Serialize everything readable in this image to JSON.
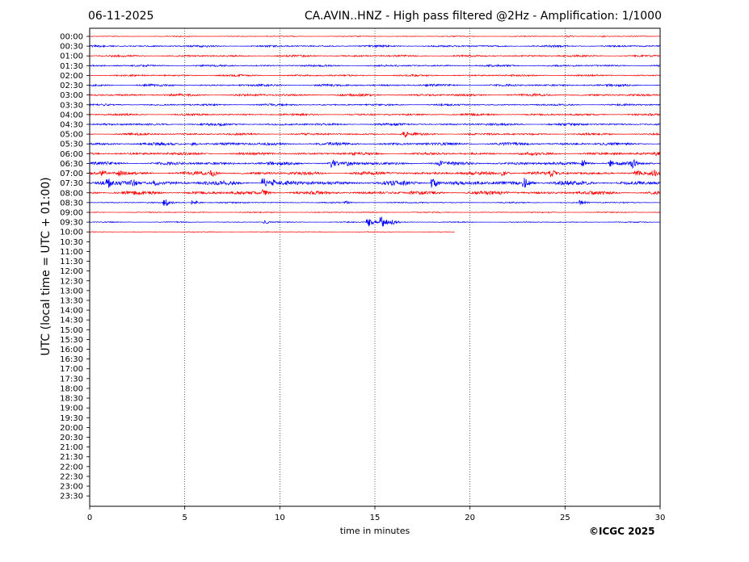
{
  "header": {
    "date": "06-11-2025",
    "title": "CA.AVIN..HNZ - High pass filtered @2Hz - Amplification: 1/1000"
  },
  "footer": {
    "credit": "©ICGC 2025"
  },
  "chart_data": {
    "type": "line",
    "title": "CA.AVIN..HNZ - High pass filtered @2Hz - Amplification: 1/1000",
    "xlabel": "time in minutes",
    "ylabel": "UTC (local time = UTC + 01:00)",
    "xlim": [
      0,
      30
    ],
    "xticks": [
      0,
      5,
      10,
      15,
      20,
      25,
      30
    ],
    "vertical_grid": [
      5,
      10,
      15,
      20,
      25
    ],
    "grid_style": "dotted vertical lines",
    "row_labels": [
      "00:00",
      "00:30",
      "01:00",
      "01:30",
      "02:00",
      "02:30",
      "03:00",
      "03:30",
      "04:00",
      "04:30",
      "05:00",
      "05:30",
      "06:00",
      "06:30",
      "07:00",
      "07:30",
      "08:00",
      "08:30",
      "09:00",
      "09:30",
      "10:00",
      "10:30",
      "11:00",
      "11:30",
      "12:00",
      "12:30",
      "13:00",
      "13:30",
      "14:00",
      "14:30",
      "15:00",
      "15:30",
      "16:00",
      "16:30",
      "17:00",
      "17:30",
      "18:00",
      "18:30",
      "19:00",
      "19:30",
      "20:00",
      "20:30",
      "21:00",
      "21:30",
      "22:00",
      "22:30",
      "23:00",
      "23:30"
    ],
    "series_colors": [
      "#ff0000",
      "#0000ff"
    ],
    "traces": [
      {
        "row": "00:00",
        "color": "red",
        "end_min": 30,
        "amplitude": 0.6,
        "events": [
          {
            "t": 25.2,
            "amp": 1.2
          },
          {
            "t": 27,
            "amp": 1.1
          }
        ]
      },
      {
        "row": "00:30",
        "color": "blue",
        "end_min": 30,
        "amplitude": 1.3,
        "events": []
      },
      {
        "row": "01:00",
        "color": "red",
        "end_min": 30,
        "amplitude": 1.3,
        "events": []
      },
      {
        "row": "01:30",
        "color": "blue",
        "end_min": 30,
        "amplitude": 1.3,
        "events": []
      },
      {
        "row": "02:00",
        "color": "red",
        "end_min": 30,
        "amplitude": 1.2,
        "events": []
      },
      {
        "row": "02:30",
        "color": "blue",
        "end_min": 30,
        "amplitude": 1.5,
        "events": []
      },
      {
        "row": "03:00",
        "color": "red",
        "end_min": 30,
        "amplitude": 1.6,
        "events": []
      },
      {
        "row": "03:30",
        "color": "blue",
        "end_min": 30,
        "amplitude": 1.3,
        "events": []
      },
      {
        "row": "04:00",
        "color": "red",
        "end_min": 30,
        "amplitude": 1.4,
        "events": []
      },
      {
        "row": "04:30",
        "color": "blue",
        "end_min": 30,
        "amplitude": 1.6,
        "events": []
      },
      {
        "row": "05:00",
        "color": "red",
        "end_min": 30,
        "amplitude": 1.5,
        "events": [
          {
            "t": 16.6,
            "amp": 4.5
          },
          {
            "t": 17.2,
            "amp": 2.5
          }
        ]
      },
      {
        "row": "05:30",
        "color": "blue",
        "end_min": 30,
        "amplitude": 2.0,
        "events": [
          {
            "t": 5.5,
            "amp": 2.5
          }
        ]
      },
      {
        "row": "06:00",
        "color": "red",
        "end_min": 30,
        "amplitude": 1.9,
        "events": [
          {
            "t": 29.8,
            "amp": 3
          }
        ]
      },
      {
        "row": "06:30",
        "color": "blue",
        "end_min": 30,
        "amplitude": 2.2,
        "events": [
          {
            "t": 12.8,
            "amp": 5
          },
          {
            "t": 13.6,
            "amp": 4
          },
          {
            "t": 18.5,
            "amp": 3
          },
          {
            "t": 26,
            "amp": 4
          },
          {
            "t": 27.4,
            "amp": 5
          },
          {
            "t": 28.6,
            "amp": 6
          }
        ]
      },
      {
        "row": "07:00",
        "color": "red",
        "end_min": 30,
        "amplitude": 2.3,
        "events": [
          {
            "t": 0.7,
            "amp": 4
          },
          {
            "t": 1.6,
            "amp": 4
          },
          {
            "t": 6.5,
            "amp": 4
          },
          {
            "t": 21.8,
            "amp": 3
          },
          {
            "t": 24.3,
            "amp": 5
          },
          {
            "t": 28.8,
            "amp": 4
          },
          {
            "t": 29.7,
            "amp": 5
          }
        ]
      },
      {
        "row": "07:30",
        "color": "blue",
        "end_min": 30,
        "amplitude": 3.0,
        "events": [
          {
            "t": 1.0,
            "amp": 6
          },
          {
            "t": 2.3,
            "amp": 5
          },
          {
            "t": 3.5,
            "amp": 4
          },
          {
            "t": 9.2,
            "amp": 6
          },
          {
            "t": 9.7,
            "amp": 5
          },
          {
            "t": 16.5,
            "amp": 4
          },
          {
            "t": 18.1,
            "amp": 6
          },
          {
            "t": 22.9,
            "amp": 7
          }
        ]
      },
      {
        "row": "08:00",
        "color": "red",
        "end_min": 30,
        "amplitude": 2.4,
        "events": [
          {
            "t": 9.2,
            "amp": 4
          }
        ]
      },
      {
        "row": "08:30",
        "color": "blue",
        "end_min": 30,
        "amplitude": 0.9,
        "events": [
          {
            "t": 4.0,
            "amp": 5
          },
          {
            "t": 5.5,
            "amp": 3
          },
          {
            "t": 13.5,
            "amp": 2
          },
          {
            "t": 25.9,
            "amp": 3
          }
        ]
      },
      {
        "row": "09:00",
        "color": "red",
        "end_min": 30,
        "amplitude": 0.7,
        "events": []
      },
      {
        "row": "09:30",
        "color": "blue",
        "end_min": 30,
        "amplitude": 0.7,
        "events": [
          {
            "t": 9.3,
            "amp": 2
          },
          {
            "t": 14.7,
            "amp": 6
          },
          {
            "t": 15.4,
            "amp": 7
          },
          {
            "t": 16.0,
            "amp": 3
          }
        ]
      },
      {
        "row": "10:00",
        "color": "red",
        "end_min": 19.2,
        "amplitude": 0.5,
        "events": []
      }
    ]
  }
}
